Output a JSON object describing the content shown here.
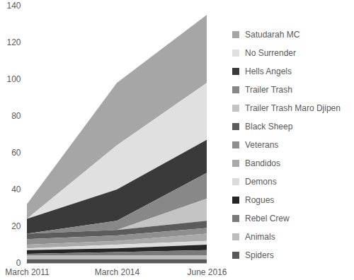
{
  "chart_data": {
    "type": "area",
    "stacked": true,
    "legend": "right",
    "grid": false,
    "categories": [
      "March 2011",
      "March 2014",
      "June 2016"
    ],
    "ylim": [
      0,
      140
    ],
    "yticks": [
      0,
      20,
      40,
      60,
      80,
      100,
      120,
      140
    ],
    "series": [
      {
        "name": "Satudarah MC",
        "color": "#a6a6a6",
        "values": [
          8,
          34,
          37
        ]
      },
      {
        "name": "No Surrender",
        "color": "#e0e0e0",
        "values": [
          0,
          24,
          31
        ]
      },
      {
        "name": "Hells Angels",
        "color": "#3a3a3a",
        "values": [
          8,
          17,
          18
        ]
      },
      {
        "name": "Trailer Trash",
        "color": "#888888",
        "values": [
          0,
          5,
          14
        ]
      },
      {
        "name": "Trailer Trash Maro Djipen",
        "color": "#c4c4c4",
        "values": [
          0,
          0,
          12
        ]
      },
      {
        "name": "Black Sheep",
        "color": "#5c5c5c",
        "values": [
          3,
          3,
          4
        ]
      },
      {
        "name": "Veterans",
        "color": "#8f8f8f",
        "values": [
          3,
          3,
          3
        ]
      },
      {
        "name": "Bandidos",
        "color": "#a9a9a9",
        "values": [
          2,
          2,
          4
        ]
      },
      {
        "name": "Demons",
        "color": "#dcdcdc",
        "values": [
          1,
          2,
          2
        ]
      },
      {
        "name": "Rogues",
        "color": "#262626",
        "values": [
          2,
          2,
          3
        ]
      },
      {
        "name": "Rebel Crew",
        "color": "#7a7a7a",
        "values": [
          1,
          2,
          3
        ]
      },
      {
        "name": "Animals",
        "color": "#bcbcbc",
        "values": [
          2,
          2,
          2
        ]
      },
      {
        "name": "Spiders",
        "color": "#5a5a5a",
        "values": [
          2,
          2,
          2
        ]
      }
    ]
  }
}
